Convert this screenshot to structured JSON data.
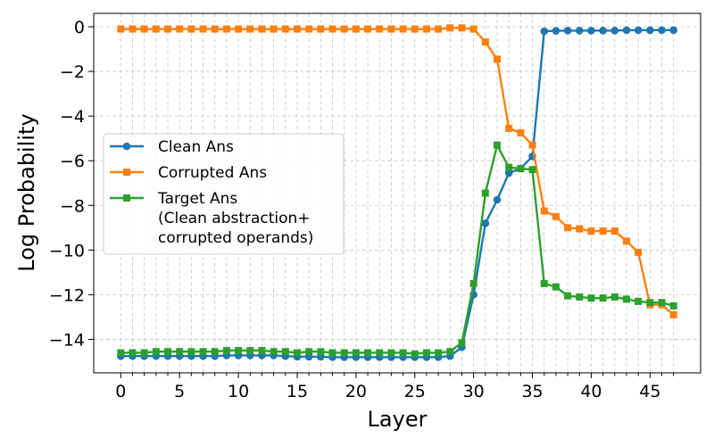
{
  "chart_data": {
    "type": "line",
    "xlabel": "Layer",
    "ylabel": "Log Probability",
    "xlim": [
      -2.3,
      49.3
    ],
    "ylim": [
      -15.5,
      0.6
    ],
    "xticks_major": [
      0,
      5,
      10,
      15,
      20,
      25,
      30,
      35,
      40,
      45
    ],
    "yticks": [
      0,
      -2,
      -4,
      -6,
      -8,
      -10,
      -12,
      -14
    ],
    "grid": true,
    "legend_position": "center-left",
    "x": [
      0,
      1,
      2,
      3,
      4,
      5,
      6,
      7,
      8,
      9,
      10,
      11,
      12,
      13,
      14,
      15,
      16,
      17,
      18,
      19,
      20,
      21,
      22,
      23,
      24,
      25,
      26,
      27,
      28,
      29,
      30,
      31,
      32,
      33,
      34,
      35,
      36,
      37,
      38,
      39,
      40,
      41,
      42,
      43,
      44,
      45,
      46,
      47
    ],
    "series": [
      {
        "name": "Clean Ans",
        "color": "#1f77b4",
        "marker": "circle",
        "values": [
          -14.75,
          -14.75,
          -14.75,
          -14.75,
          -14.75,
          -14.75,
          -14.75,
          -14.75,
          -14.75,
          -14.72,
          -14.72,
          -14.72,
          -14.72,
          -14.72,
          -14.75,
          -14.78,
          -14.78,
          -14.78,
          -14.8,
          -14.8,
          -14.8,
          -14.8,
          -14.8,
          -14.8,
          -14.8,
          -14.8,
          -14.8,
          -14.8,
          -14.75,
          -14.35,
          -12.0,
          -8.8,
          -7.75,
          -6.55,
          -6.35,
          -5.8,
          -0.2,
          -0.18,
          -0.17,
          -0.17,
          -0.17,
          -0.17,
          -0.17,
          -0.15,
          -0.15,
          -0.15,
          -0.15,
          -0.15
        ]
      },
      {
        "name": "Corrupted Ans",
        "color": "#ff7f0e",
        "marker": "square",
        "values": [
          -0.1,
          -0.1,
          -0.1,
          -0.1,
          -0.1,
          -0.1,
          -0.1,
          -0.1,
          -0.1,
          -0.1,
          -0.1,
          -0.1,
          -0.1,
          -0.1,
          -0.1,
          -0.1,
          -0.1,
          -0.1,
          -0.1,
          -0.1,
          -0.1,
          -0.1,
          -0.1,
          -0.1,
          -0.1,
          -0.1,
          -0.1,
          -0.1,
          -0.05,
          -0.05,
          -0.1,
          -0.68,
          -1.45,
          -4.55,
          -4.75,
          -5.3,
          -8.25,
          -8.5,
          -9.0,
          -9.05,
          -9.15,
          -9.15,
          -9.15,
          -9.6,
          -10.1,
          -12.45,
          -12.45,
          -12.9
        ]
      },
      {
        "name": "Target Ans\n(Clean abstraction+\ncorrupted operands)",
        "color": "#2ca02c",
        "marker": "square",
        "values": [
          -14.6,
          -14.6,
          -14.6,
          -14.55,
          -14.55,
          -14.55,
          -14.55,
          -14.55,
          -14.55,
          -14.5,
          -14.5,
          -14.5,
          -14.5,
          -14.55,
          -14.55,
          -14.6,
          -14.55,
          -14.55,
          -14.6,
          -14.6,
          -14.6,
          -14.6,
          -14.6,
          -14.6,
          -14.6,
          -14.65,
          -14.6,
          -14.6,
          -14.55,
          -14.15,
          -11.5,
          -7.45,
          -5.3,
          -6.3,
          -6.35,
          -6.4,
          -11.5,
          -11.65,
          -12.05,
          -12.1,
          -12.15,
          -12.15,
          -12.1,
          -12.2,
          -12.3,
          -12.35,
          -12.35,
          -12.5
        ]
      }
    ]
  }
}
